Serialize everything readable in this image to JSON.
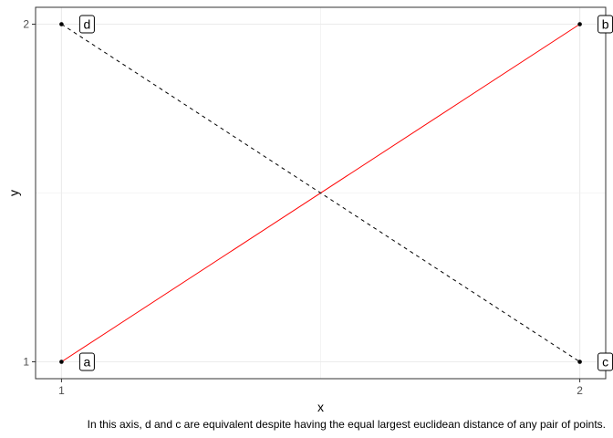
{
  "chart_data": {
    "type": "scatter",
    "title": "",
    "xlabel": "x",
    "ylabel": "y",
    "xlim": [
      0.95,
      2.05
    ],
    "ylim": [
      0.95,
      2.05
    ],
    "x_ticks": [
      1,
      2
    ],
    "y_ticks": [
      1,
      2
    ],
    "grid": true,
    "points": [
      {
        "label": "a",
        "x": 1,
        "y": 1
      },
      {
        "label": "b",
        "x": 2,
        "y": 2
      },
      {
        "label": "c",
        "x": 2,
        "y": 1
      },
      {
        "label": "d",
        "x": 1,
        "y": 2
      }
    ],
    "segments": [
      {
        "from": "a",
        "to": "b",
        "color": "#ff0000",
        "style": "solid"
      },
      {
        "from": "d",
        "to": "c",
        "color": "#000000",
        "style": "dashed"
      }
    ],
    "caption": "In this axis, d and c are equivalent despite having the equal largest euclidean distance of any pair of points."
  }
}
